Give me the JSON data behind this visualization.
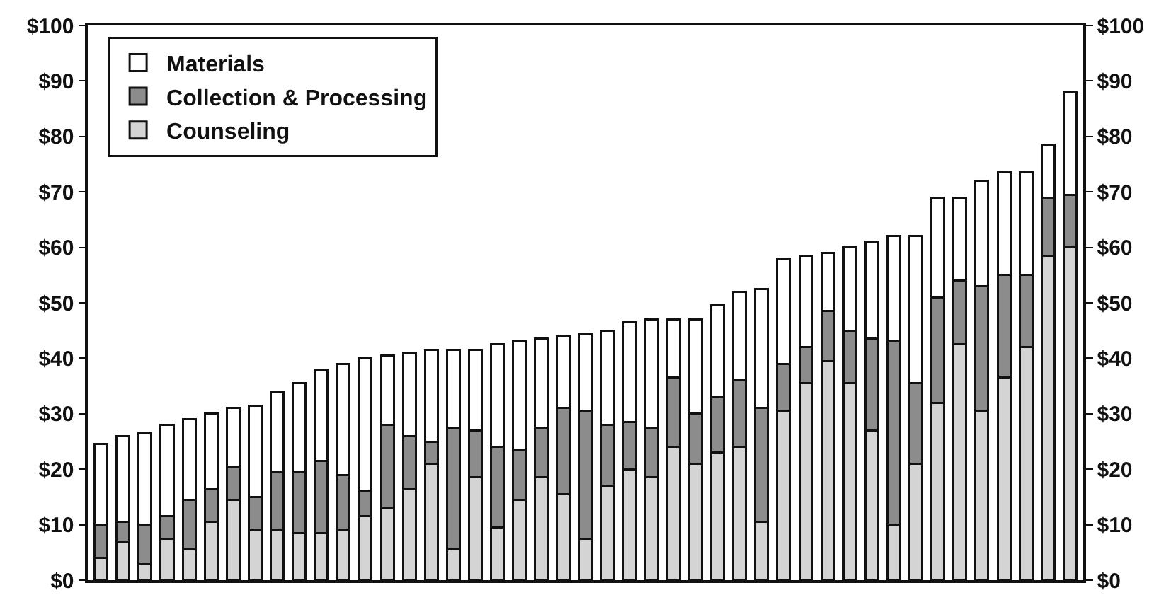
{
  "chart_data": {
    "type": "bar",
    "stacked": true,
    "categories": [
      null,
      null,
      null,
      null,
      null,
      null,
      null,
      null,
      null,
      null,
      null,
      null,
      null,
      null,
      null,
      null,
      null,
      null,
      null,
      null,
      null,
      null,
      null,
      null,
      null,
      null,
      null,
      null,
      null,
      null,
      null,
      null,
      null,
      null,
      null,
      null,
      null,
      null,
      null,
      null,
      null,
      null,
      null,
      null,
      null
    ],
    "series": [
      {
        "name": "Counseling",
        "color": "#d4d4d4",
        "values": [
          4,
          7,
          3,
          7.5,
          5.5,
          10.5,
          14.5,
          9,
          9,
          8.5,
          8.5,
          9,
          11.5,
          13,
          16.5,
          21,
          5.5,
          18.5,
          9.5,
          14.5,
          18.5,
          15.5,
          7.5,
          17,
          20,
          18.5,
          24,
          21,
          23,
          24,
          10.5,
          30.5,
          35.5,
          39.5,
          35.5,
          27,
          10,
          21,
          32,
          42.5,
          30.5,
          36.5,
          42,
          58.5,
          60
        ]
      },
      {
        "name": "Collection & Processing",
        "color": "#8c8c8c",
        "values": [
          6,
          3.5,
          7,
          4,
          9,
          6,
          6,
          6,
          10.5,
          11,
          13,
          10,
          4.5,
          15,
          9.5,
          4,
          22,
          8.5,
          14.5,
          9,
          9,
          15.5,
          23,
          11,
          8.5,
          9,
          12.5,
          9,
          10,
          12,
          20.5,
          8.5,
          6.5,
          9,
          9.5,
          16.5,
          33,
          14.5,
          19,
          11.5,
          22.5,
          18.5,
          13,
          10.5,
          9.5
        ]
      },
      {
        "name": "Materials",
        "color": "#ffffff",
        "values": [
          14.5,
          15.5,
          16.5,
          16.5,
          14.5,
          13.5,
          10.5,
          16.5,
          14.5,
          16,
          16.5,
          20,
          24,
          12.5,
          15,
          16.5,
          14,
          14.5,
          18.5,
          19.5,
          16,
          13,
          14,
          17,
          18,
          19.5,
          10.5,
          17,
          16.5,
          16,
          21.5,
          19,
          16.5,
          10.5,
          15,
          17.5,
          19,
          26.5,
          18,
          15,
          19,
          18.5,
          18.5,
          9.5,
          18.5
        ]
      }
    ],
    "ylim": [
      0,
      100
    ],
    "yticks": [
      {
        "value": 0,
        "label": "$0"
      },
      {
        "value": 10,
        "label": "$10"
      },
      {
        "value": 20,
        "label": "$20"
      },
      {
        "value": 30,
        "label": "$30"
      },
      {
        "value": 40,
        "label": "$40"
      },
      {
        "value": 50,
        "label": "$50"
      },
      {
        "value": 60,
        "label": "$60"
      },
      {
        "value": 70,
        "label": "$70"
      },
      {
        "value": 80,
        "label": "$80"
      },
      {
        "value": 90,
        "label": "$90"
      },
      {
        "value": 100,
        "label": "$100"
      }
    ],
    "y2lim": [
      0,
      100
    ],
    "y2ticks": [
      {
        "value": 0,
        "label": "$0"
      },
      {
        "value": 10,
        "label": "$10"
      },
      {
        "value": 20,
        "label": "$20"
      },
      {
        "value": 30,
        "label": "$30"
      },
      {
        "value": 40,
        "label": "$40"
      },
      {
        "value": 50,
        "label": "$50"
      },
      {
        "value": 60,
        "label": "$60"
      },
      {
        "value": 70,
        "label": "$70"
      },
      {
        "value": 80,
        "label": "$80"
      },
      {
        "value": 90,
        "label": "$90"
      },
      {
        "value": 100,
        "label": "$100"
      }
    ],
    "legend": "top left",
    "grid": false
  }
}
